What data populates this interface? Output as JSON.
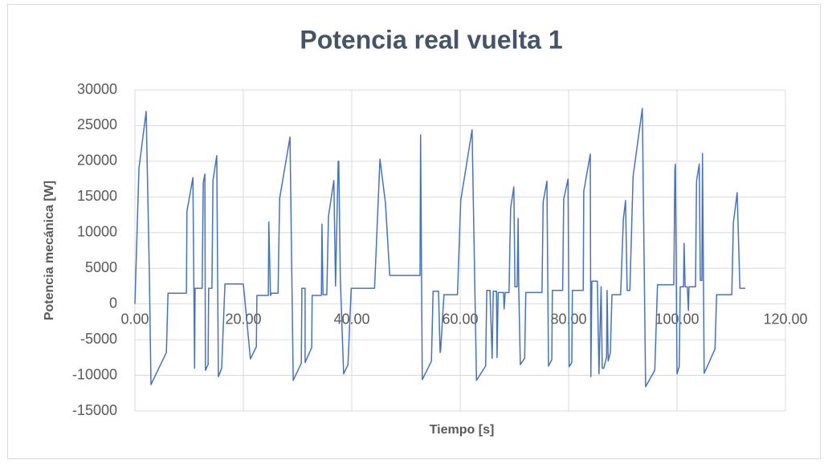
{
  "chart_data": {
    "type": "line",
    "title": "Potencia real vuelta 1",
    "x_label": "Tiempo [s]",
    "y_label": "Potencia mecánica [W]",
    "color": "#4472c4",
    "grid": true,
    "xlim": [
      0,
      120
    ],
    "ylim": [
      -15000,
      30000
    ],
    "xticks": [
      {
        "value": 0,
        "label": "0.00"
      },
      {
        "value": 20,
        "label": "20.00"
      },
      {
        "value": 40,
        "label": "40.00"
      },
      {
        "value": 60,
        "label": "60.00"
      },
      {
        "value": 80,
        "label": "80.00"
      },
      {
        "value": 100,
        "label": "100.00"
      },
      {
        "value": 120,
        "label": "120.00"
      }
    ],
    "yticks": [
      -15000,
      -10000,
      -5000,
      0,
      5000,
      10000,
      15000,
      20000,
      25000,
      30000
    ],
    "x": [
      0,
      0.74,
      2.07,
      2.67,
      2.96,
      5.8,
      6.1,
      9.5,
      9.6,
      10.7,
      11.0,
      11.1,
      12.4,
      12.6,
      12.9,
      13.0,
      13.5,
      13.6,
      14.2,
      14.4,
      15.1,
      15.4,
      16.0,
      16.6,
      20.0,
      21.3,
      22.4,
      22.5,
      24.6,
      24.7,
      25.0,
      25.2,
      26.4,
      26.7,
      28.6,
      29.2,
      30.7,
      30.8,
      31.4,
      31.4,
      32.6,
      32.7,
      34.4,
      34.5,
      34.7,
      35.4,
      35.7,
      36.7,
      37.0,
      37.5,
      37.6,
      37.9,
      38.5,
      39.3,
      39.9,
      44.2,
      45.2,
      46.2,
      47.0,
      52.6,
      52.7,
      53.0,
      54.7,
      55.0,
      56.0,
      56.3,
      56.4,
      57.0,
      59.5,
      60.1,
      62.2,
      63.0,
      64.7,
      64.9,
      65.5,
      65.9,
      66.1,
      66.7,
      66.8,
      67.0,
      68.0,
      68.1,
      68.3,
      69.0,
      69.3,
      69.9,
      70.1,
      70.5,
      70.7,
      70.8,
      71.1,
      71.9,
      72.1,
      75.1,
      75.3,
      76.0,
      76.3,
      76.9,
      77.0,
      78.9,
      79.1,
      79.9,
      80.1,
      80.6,
      80.7,
      82.7,
      82.8,
      84.0,
      84.1,
      84.3,
      85.3,
      85.6,
      86.0,
      86.2,
      86.5,
      87.0,
      87.1,
      87.3,
      87.7,
      88.0,
      89.6,
      90.1,
      90.5,
      90.8,
      91.3,
      91.9,
      93.6,
      94.2,
      95.9,
      96.4,
      99.4,
      99.6,
      99.7,
      100.0,
      100.4,
      100.6,
      101.2,
      101.3,
      101.5,
      101.9,
      102.1,
      102.2,
      103.4,
      103.6,
      104.1,
      104.3,
      104.6,
      104.7,
      105.0,
      105.5,
      107.0,
      107.3,
      110.1,
      110.4,
      111.1,
      111.6,
      112.6
    ],
    "values": [
      0,
      19000,
      27000,
      4000,
      -11300,
      -6800,
      1500,
      1500,
      13000,
      17700,
      -9000,
      2200,
      2200,
      17000,
      18200,
      -9300,
      -8500,
      2200,
      2200,
      17300,
      20800,
      -10200,
      -9000,
      2800,
      2800,
      -7700,
      -6000,
      1200,
      1200,
      11500,
      1200,
      1500,
      1500,
      14800,
      23400,
      -10700,
      -8300,
      2200,
      2200,
      -8200,
      -6100,
      1200,
      1200,
      11200,
      1300,
      1300,
      12300,
      17300,
      2500,
      20000,
      20000,
      3400,
      -9800,
      -8500,
      2200,
      2200,
      20300,
      14200,
      4000,
      4000,
      23700,
      -10600,
      -8000,
      1800,
      1800,
      -6800,
      -6400,
      1300,
      1300,
      14500,
      24400,
      -10700,
      -8700,
      1900,
      1900,
      -7600,
      1800,
      1800,
      -7500,
      1600,
      1600,
      -700,
      1600,
      1600,
      13400,
      16400,
      2400,
      2400,
      12000,
      2400,
      -8500,
      -7600,
      1600,
      1600,
      14300,
      17200,
      -8700,
      -7800,
      1900,
      1900,
      14700,
      17500,
      -8800,
      -8200,
      1900,
      1900,
      15800,
      21000,
      -10200,
      3200,
      3200,
      -9800,
      2400,
      -9000,
      -9000,
      -7400,
      1900,
      -8000,
      -6800,
      1300,
      1300,
      11900,
      14500,
      1900,
      1900,
      17900,
      27400,
      -11600,
      -9300,
      2700,
      2700,
      18800,
      19600,
      -9800,
      -8800,
      2400,
      2400,
      8500,
      2400,
      2400,
      -900,
      2400,
      2400,
      17200,
      19600,
      3300,
      3300,
      21100,
      -9700,
      -8900,
      -6300,
      1300,
      1300,
      11400,
      15600,
      2200,
      2200
    ]
  }
}
